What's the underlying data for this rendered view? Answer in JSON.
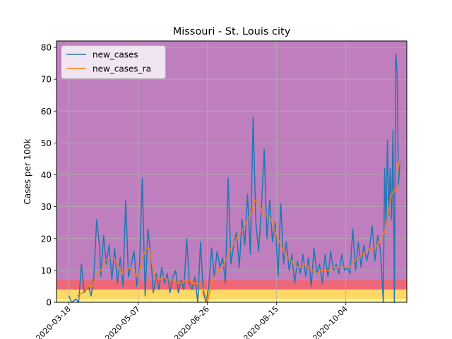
{
  "chart_data": {
    "type": "line",
    "title": "Missouri - St. Louis city",
    "xlabel": "",
    "ylabel": "Cases per 100k",
    "xlim": [
      "2020-03-09",
      "2020-11-17"
    ],
    "ylim": [
      0,
      82
    ],
    "yticks": [
      0,
      10,
      20,
      30,
      40,
      50,
      60,
      70,
      80
    ],
    "xticks": [
      "2020-03-18",
      "2020-05-07",
      "2020-06-26",
      "2020-08-15",
      "2020-10-04"
    ],
    "grid": true,
    "legend_position": "top-left",
    "risk_bands": [
      {
        "from": 0,
        "to": 1,
        "color": "#fff59a"
      },
      {
        "from": 1,
        "to": 4,
        "color": "#ffd966"
      },
      {
        "from": 4,
        "to": 7,
        "color": "#ee6677"
      },
      {
        "from": 7,
        "to": 82,
        "color": "#bf7fbf"
      }
    ],
    "series": [
      {
        "name": "new_cases",
        "color": "#1f77b4",
        "points": [
          [
            "2020-03-18",
            2
          ],
          [
            "2020-03-20",
            0
          ],
          [
            "2020-03-23",
            1
          ],
          [
            "2020-03-25",
            0
          ],
          [
            "2020-03-27",
            12
          ],
          [
            "2020-03-29",
            3
          ],
          [
            "2020-04-01",
            5
          ],
          [
            "2020-04-03",
            2
          ],
          [
            "2020-04-05",
            8
          ],
          [
            "2020-04-07",
            26
          ],
          [
            "2020-04-09",
            18
          ],
          [
            "2020-04-10",
            8
          ],
          [
            "2020-04-12",
            21
          ],
          [
            "2020-04-14",
            12
          ],
          [
            "2020-04-16",
            18
          ],
          [
            "2020-04-18",
            7
          ],
          [
            "2020-04-20",
            17
          ],
          [
            "2020-04-22",
            6
          ],
          [
            "2020-04-24",
            14
          ],
          [
            "2020-04-26",
            5
          ],
          [
            "2020-04-28",
            32
          ],
          [
            "2020-04-30",
            8
          ],
          [
            "2020-05-02",
            12
          ],
          [
            "2020-05-04",
            16
          ],
          [
            "2020-05-06",
            5
          ],
          [
            "2020-05-08",
            12
          ],
          [
            "2020-05-10",
            39
          ],
          [
            "2020-05-12",
            2
          ],
          [
            "2020-05-14",
            23
          ],
          [
            "2020-05-16",
            15
          ],
          [
            "2020-05-18",
            3
          ],
          [
            "2020-05-20",
            9
          ],
          [
            "2020-05-22",
            4
          ],
          [
            "2020-05-24",
            11
          ],
          [
            "2020-05-26",
            6
          ],
          [
            "2020-05-28",
            9
          ],
          [
            "2020-05-30",
            3
          ],
          [
            "2020-06-01",
            8
          ],
          [
            "2020-06-03",
            10
          ],
          [
            "2020-06-05",
            3
          ],
          [
            "2020-06-07",
            7
          ],
          [
            "2020-06-09",
            4
          ],
          [
            "2020-06-11",
            20
          ],
          [
            "2020-06-13",
            6
          ],
          [
            "2020-06-15",
            4
          ],
          [
            "2020-06-17",
            8
          ],
          [
            "2020-06-19",
            0
          ],
          [
            "2020-06-21",
            19
          ],
          [
            "2020-06-23",
            3
          ],
          [
            "2020-06-25",
            0
          ],
          [
            "2020-06-27",
            5
          ],
          [
            "2020-06-29",
            17
          ],
          [
            "2020-07-01",
            8
          ],
          [
            "2020-07-03",
            16
          ],
          [
            "2020-07-05",
            11
          ],
          [
            "2020-07-07",
            14
          ],
          [
            "2020-07-09",
            6
          ],
          [
            "2020-07-11",
            39
          ],
          [
            "2020-07-13",
            12
          ],
          [
            "2020-07-15",
            18
          ],
          [
            "2020-07-17",
            22
          ],
          [
            "2020-07-19",
            11
          ],
          [
            "2020-07-21",
            26
          ],
          [
            "2020-07-23",
            18
          ],
          [
            "2020-07-25",
            34
          ],
          [
            "2020-07-27",
            15
          ],
          [
            "2020-07-29",
            58
          ],
          [
            "2020-07-31",
            25
          ],
          [
            "2020-08-02",
            16
          ],
          [
            "2020-08-04",
            30
          ],
          [
            "2020-08-06",
            48
          ],
          [
            "2020-08-08",
            20
          ],
          [
            "2020-08-10",
            32
          ],
          [
            "2020-08-12",
            19
          ],
          [
            "2020-08-14",
            25
          ],
          [
            "2020-08-16",
            8
          ],
          [
            "2020-08-18",
            31
          ],
          [
            "2020-08-20",
            12
          ],
          [
            "2020-08-22",
            19
          ],
          [
            "2020-08-24",
            10
          ],
          [
            "2020-08-26",
            15
          ],
          [
            "2020-08-28",
            6
          ],
          [
            "2020-08-30",
            13
          ],
          [
            "2020-09-01",
            9
          ],
          [
            "2020-09-03",
            15
          ],
          [
            "2020-09-05",
            8
          ],
          [
            "2020-09-07",
            14
          ],
          [
            "2020-09-09",
            5
          ],
          [
            "2020-09-11",
            17
          ],
          [
            "2020-09-13",
            9
          ],
          [
            "2020-09-15",
            12
          ],
          [
            "2020-09-17",
            6
          ],
          [
            "2020-09-19",
            15
          ],
          [
            "2020-09-21",
            8
          ],
          [
            "2020-09-23",
            16
          ],
          [
            "2020-09-25",
            10
          ],
          [
            "2020-09-27",
            12
          ],
          [
            "2020-09-29",
            9
          ],
          [
            "2020-10-01",
            15
          ],
          [
            "2020-10-03",
            10
          ],
          [
            "2020-10-05",
            11
          ],
          [
            "2020-10-07",
            9
          ],
          [
            "2020-10-09",
            23
          ],
          [
            "2020-10-11",
            10
          ],
          [
            "2020-10-13",
            19
          ],
          [
            "2020-10-15",
            11
          ],
          [
            "2020-10-17",
            18
          ],
          [
            "2020-10-19",
            13
          ],
          [
            "2020-10-21",
            17
          ],
          [
            "2020-10-23",
            24
          ],
          [
            "2020-10-25",
            13
          ],
          [
            "2020-10-27",
            21
          ],
          [
            "2020-10-29",
            16
          ],
          [
            "2020-10-31",
            0
          ],
          [
            "2020-11-01",
            42
          ],
          [
            "2020-11-02",
            24
          ],
          [
            "2020-11-03",
            51
          ],
          [
            "2020-11-04",
            27
          ],
          [
            "2020-11-05",
            42
          ],
          [
            "2020-11-06",
            26
          ],
          [
            "2020-11-07",
            54
          ],
          [
            "2020-11-08",
            0
          ],
          [
            "2020-11-09",
            78
          ],
          [
            "2020-11-10",
            72
          ],
          [
            "2020-11-11",
            37
          ],
          [
            "2020-11-12",
            44
          ]
        ]
      },
      {
        "name": "new_cases_ra",
        "color": "#ff7f0e",
        "points": [
          [
            "2020-03-24",
            2
          ],
          [
            "2020-03-28",
            3
          ],
          [
            "2020-04-01",
            5
          ],
          [
            "2020-04-04",
            5
          ],
          [
            "2020-04-07",
            9
          ],
          [
            "2020-04-10",
            10
          ],
          [
            "2020-04-13",
            13
          ],
          [
            "2020-04-16",
            14
          ],
          [
            "2020-04-19",
            14
          ],
          [
            "2020-04-22",
            12
          ],
          [
            "2020-04-25",
            9
          ],
          [
            "2020-04-28",
            10
          ],
          [
            "2020-05-01",
            11
          ],
          [
            "2020-05-04",
            9
          ],
          [
            "2020-05-07",
            8
          ],
          [
            "2020-05-10",
            14
          ],
          [
            "2020-05-13",
            17
          ],
          [
            "2020-05-15",
            17
          ],
          [
            "2020-05-17",
            12
          ],
          [
            "2020-05-19",
            8
          ],
          [
            "2020-05-22",
            7
          ],
          [
            "2020-05-25",
            8
          ],
          [
            "2020-05-28",
            7
          ],
          [
            "2020-06-01",
            7
          ],
          [
            "2020-06-04",
            6
          ],
          [
            "2020-06-07",
            6
          ],
          [
            "2020-06-10",
            7
          ],
          [
            "2020-06-13",
            7
          ],
          [
            "2020-06-16",
            6
          ],
          [
            "2020-06-19",
            6
          ],
          [
            "2020-06-22",
            5
          ],
          [
            "2020-06-24",
            3
          ],
          [
            "2020-06-26",
            0
          ],
          [
            "2020-06-28",
            4
          ],
          [
            "2020-07-01",
            8
          ],
          [
            "2020-07-04",
            10
          ],
          [
            "2020-07-07",
            11
          ],
          [
            "2020-07-10",
            14
          ],
          [
            "2020-07-13",
            17
          ],
          [
            "2020-07-16",
            19
          ],
          [
            "2020-07-19",
            22
          ],
          [
            "2020-07-22",
            23
          ],
          [
            "2020-07-25",
            26
          ],
          [
            "2020-07-28",
            28
          ],
          [
            "2020-07-30",
            32
          ],
          [
            "2020-08-02",
            31
          ],
          [
            "2020-08-05",
            28
          ],
          [
            "2020-08-08",
            27
          ],
          [
            "2020-08-11",
            26
          ],
          [
            "2020-08-14",
            22
          ],
          [
            "2020-08-17",
            19
          ],
          [
            "2020-08-20",
            16
          ],
          [
            "2020-08-23",
            14
          ],
          [
            "2020-08-26",
            13
          ],
          [
            "2020-08-29",
            11
          ],
          [
            "2020-09-01",
            11
          ],
          [
            "2020-09-04",
            12
          ],
          [
            "2020-09-07",
            11
          ],
          [
            "2020-09-10",
            10
          ],
          [
            "2020-09-13",
            9
          ],
          [
            "2020-09-16",
            10
          ],
          [
            "2020-09-19",
            10
          ],
          [
            "2020-09-22",
            10
          ],
          [
            "2020-09-25",
            11
          ],
          [
            "2020-09-28",
            11
          ],
          [
            "2020-10-01",
            11
          ],
          [
            "2020-10-04",
            11
          ],
          [
            "2020-10-07",
            11
          ],
          [
            "2020-10-10",
            13
          ],
          [
            "2020-10-13",
            14
          ],
          [
            "2020-10-16",
            15
          ],
          [
            "2020-10-19",
            16
          ],
          [
            "2020-10-22",
            17
          ],
          [
            "2020-10-25",
            17
          ],
          [
            "2020-10-28",
            19
          ],
          [
            "2020-10-31",
            21
          ],
          [
            "2020-11-02",
            24
          ],
          [
            "2020-11-04",
            29
          ],
          [
            "2020-11-06",
            34
          ],
          [
            "2020-11-08",
            35
          ],
          [
            "2020-11-10",
            36
          ],
          [
            "2020-11-11",
            44
          ],
          [
            "2020-11-12",
            43
          ]
        ]
      }
    ]
  }
}
